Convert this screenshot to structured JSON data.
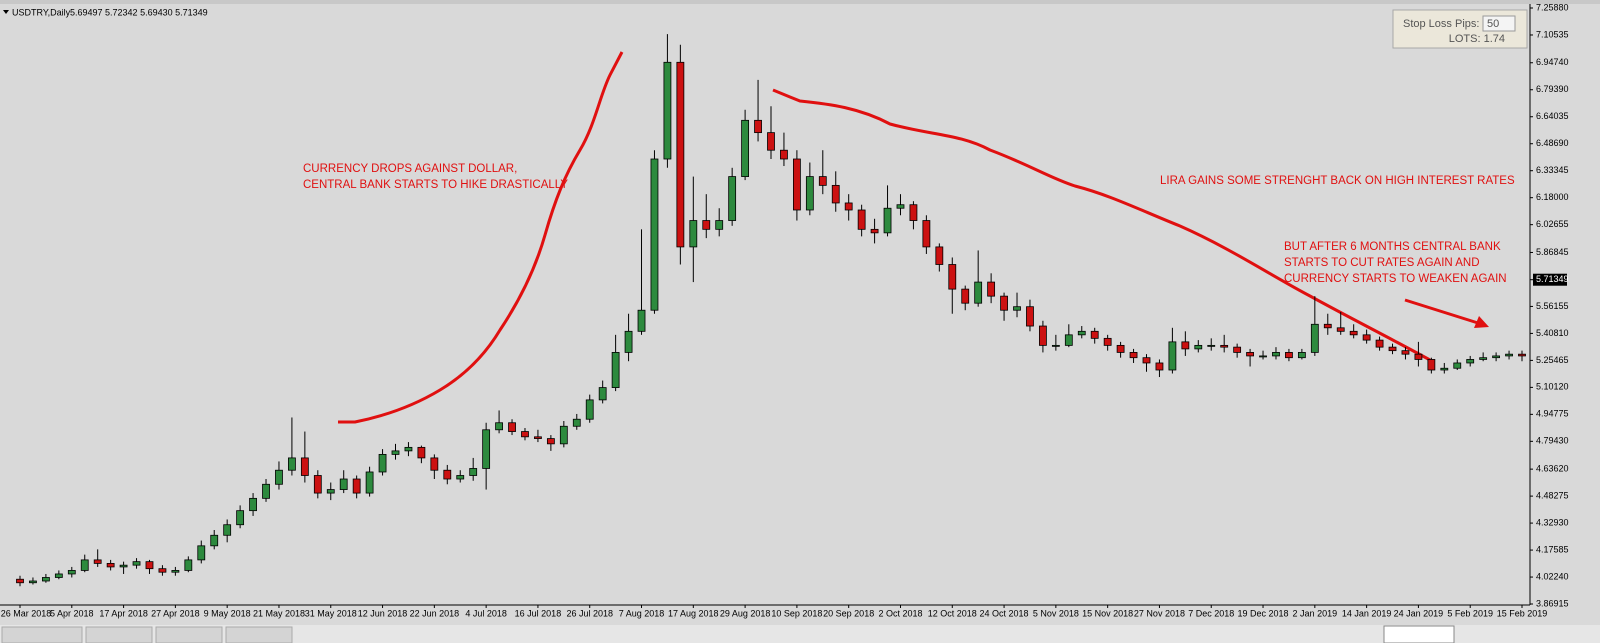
{
  "chart_data": {
    "type": "candlestick",
    "header": {
      "symbol": "USDTRY,Daily",
      "quote": "5.69497 5.72342 5.69430 5.71349"
    },
    "panel": {
      "label": "Stop Loss Pips:",
      "pips": 50,
      "lots": "LOTS: 1.74"
    },
    "annotations": [
      "CURRENCY DROPS AGAINST DOLLAR,",
      "CENTRAL BANK STARTS TO HIKE DRASTICALLY",
      "LIRA GAINS SOME STRENGHT BACK ON HIGH INTEREST RATES",
      "BUT AFTER 6 MONTHS CENTRAL BANK",
      "STARTS TO CUT RATES AGAIN AND",
      "CURRENCY STARTS TO WEAKEN AGAIN"
    ],
    "up_color": "#2d8a3e",
    "down_color": "#cc1111",
    "current_price": 5.71349,
    "ylim": [
      3.86915,
      7.2588
    ],
    "yticks": [
      {
        "value": 7.2588,
        "label": "7.25880"
      },
      7.10535,
      {
        "value": 6.9474,
        "label": "6.94740"
      },
      {
        "value": 6.7939,
        "label": "6.79390"
      },
      6.64035,
      {
        "value": 6.4869,
        "label": "6.48690"
      },
      6.33345,
      {
        "value": 6.18,
        "label": "6.18000"
      },
      6.02655,
      5.86845,
      5.56155,
      {
        "value": 5.4081,
        "label": "5.40810"
      },
      5.25465,
      {
        "value": 5.1012,
        "label": "5.10120"
      },
      4.94775,
      {
        "value": 4.7943,
        "label": "4.79430"
      },
      {
        "value": 4.6362,
        "label": "4.63620"
      },
      4.48275,
      {
        "value": 4.3293,
        "label": "4.32930"
      },
      4.17585,
      {
        "value": 4.0224,
        "label": "4.02240"
      },
      3.86915
    ],
    "categories": [
      "26 Mar 2018",
      null,
      null,
      null,
      "5 Apr 2018",
      null,
      null,
      null,
      "17 Apr 2018",
      null,
      null,
      null,
      "27 Apr 2018",
      null,
      null,
      null,
      "9 May 2018",
      null,
      null,
      null,
      "21 May 2018",
      null,
      null,
      null,
      "31 May 2018",
      null,
      null,
      null,
      "12 Jun 2018",
      null,
      null,
      null,
      "22 Jun 2018",
      null,
      null,
      null,
      "4 Jul 2018",
      null,
      null,
      null,
      "16 Jul 2018",
      null,
      null,
      null,
      "26 Jul 2018",
      null,
      null,
      null,
      "7 Aug 2018",
      null,
      null,
      null,
      "17 Aug 2018",
      null,
      null,
      null,
      "29 Aug 2018",
      null,
      null,
      null,
      "10 Sep 2018",
      null,
      null,
      null,
      "20 Sep 2018",
      null,
      null,
      null,
      "2 Oct 2018",
      null,
      null,
      null,
      "12 Oct 2018",
      null,
      null,
      null,
      "24 Oct 2018",
      null,
      null,
      null,
      "5 Nov 2018",
      null,
      null,
      null,
      "15 Nov 2018",
      null,
      null,
      null,
      "27 Nov 2018",
      null,
      null,
      null,
      "7 Dec 2018",
      null,
      null,
      null,
      "19 Dec 2018",
      null,
      null,
      null,
      "2 Jan 2019",
      null,
      null,
      null,
      "14 Jan 2019",
      null,
      null,
      null,
      "24 Jan 2019",
      null,
      null,
      null,
      "5 Feb 2019",
      null,
      null,
      null,
      "15 Feb 2019"
    ],
    "ohlc": [
      [
        4.01,
        4.03,
        3.97,
        3.99
      ],
      [
        3.99,
        4.02,
        3.98,
        4.0
      ],
      [
        4.0,
        4.04,
        3.99,
        4.02
      ],
      [
        4.02,
        4.06,
        4.01,
        4.04
      ],
      [
        4.04,
        4.08,
        4.02,
        4.06
      ],
      [
        4.06,
        4.15,
        4.05,
        4.12
      ],
      [
        4.12,
        4.18,
        4.08,
        4.1
      ],
      [
        4.1,
        4.12,
        4.06,
        4.08
      ],
      [
        4.08,
        4.11,
        4.04,
        4.09
      ],
      [
        4.09,
        4.13,
        4.07,
        4.11
      ],
      [
        4.11,
        4.12,
        4.04,
        4.07
      ],
      [
        4.07,
        4.09,
        4.03,
        4.05
      ],
      [
        4.05,
        4.08,
        4.03,
        4.06
      ],
      [
        4.06,
        4.14,
        4.05,
        4.12
      ],
      [
        4.12,
        4.23,
        4.1,
        4.2
      ],
      [
        4.2,
        4.29,
        4.18,
        4.26
      ],
      [
        4.26,
        4.35,
        4.22,
        4.32
      ],
      [
        4.32,
        4.43,
        4.3,
        4.4
      ],
      [
        4.4,
        4.5,
        4.37,
        4.47
      ],
      [
        4.47,
        4.58,
        4.45,
        4.55
      ],
      [
        4.55,
        4.68,
        4.52,
        4.63
      ],
      [
        4.63,
        4.93,
        4.6,
        4.7
      ],
      [
        4.7,
        4.85,
        4.56,
        4.6
      ],
      [
        4.6,
        4.63,
        4.47,
        4.5
      ],
      [
        4.5,
        4.56,
        4.46,
        4.52
      ],
      [
        4.52,
        4.63,
        4.5,
        4.58
      ],
      [
        4.58,
        4.6,
        4.47,
        4.5
      ],
      [
        4.5,
        4.65,
        4.48,
        4.62
      ],
      [
        4.62,
        4.75,
        4.6,
        4.72
      ],
      [
        4.72,
        4.78,
        4.69,
        4.74
      ],
      [
        4.74,
        4.79,
        4.71,
        4.76
      ],
      [
        4.76,
        4.77,
        4.67,
        4.7
      ],
      [
        4.7,
        4.72,
        4.58,
        4.63
      ],
      [
        4.63,
        4.66,
        4.55,
        4.58
      ],
      [
        4.58,
        4.63,
        4.56,
        4.6
      ],
      [
        4.6,
        4.7,
        4.57,
        4.64
      ],
      [
        4.64,
        4.9,
        4.52,
        4.86
      ],
      [
        4.86,
        4.97,
        4.84,
        4.9
      ],
      [
        4.9,
        4.92,
        4.83,
        4.85
      ],
      [
        4.85,
        4.87,
        4.8,
        4.82
      ],
      [
        4.82,
        4.86,
        4.79,
        4.81
      ],
      [
        4.81,
        4.83,
        4.74,
        4.78
      ],
      [
        4.78,
        4.91,
        4.76,
        4.88
      ],
      [
        4.88,
        4.95,
        4.86,
        4.92
      ],
      [
        4.92,
        5.06,
        4.9,
        5.03
      ],
      [
        5.03,
        5.14,
        5.01,
        5.1
      ],
      [
        5.1,
        5.4,
        5.08,
        5.3
      ],
      [
        5.3,
        5.52,
        5.25,
        5.42
      ],
      [
        5.42,
        6.0,
        5.4,
        5.54
      ],
      [
        5.54,
        6.45,
        5.52,
        6.4
      ],
      [
        6.4,
        7.11,
        6.35,
        6.95
      ],
      [
        6.95,
        7.05,
        5.8,
        5.9
      ],
      [
        5.9,
        6.3,
        5.7,
        6.05
      ],
      [
        6.05,
        6.2,
        5.95,
        6.0
      ],
      [
        6.0,
        6.12,
        5.96,
        6.05
      ],
      [
        6.05,
        6.35,
        6.02,
        6.3
      ],
      [
        6.3,
        6.68,
        6.28,
        6.62
      ],
      [
        6.62,
        6.85,
        6.5,
        6.55
      ],
      [
        6.55,
        6.7,
        6.4,
        6.45
      ],
      [
        6.45,
        6.55,
        6.36,
        6.4
      ],
      [
        6.4,
        6.45,
        6.05,
        6.11
      ],
      [
        6.11,
        6.38,
        6.08,
        6.3
      ],
      [
        6.3,
        6.45,
        6.2,
        6.25
      ],
      [
        6.25,
        6.33,
        6.1,
        6.15
      ],
      [
        6.15,
        6.2,
        6.05,
        6.11
      ],
      [
        6.11,
        6.14,
        5.96,
        6.0
      ],
      [
        6.0,
        6.06,
        5.92,
        5.98
      ],
      [
        5.98,
        6.25,
        5.96,
        6.12
      ],
      [
        6.12,
        6.2,
        6.08,
        6.14
      ],
      [
        6.14,
        6.16,
        6.0,
        6.05
      ],
      [
        6.05,
        6.08,
        5.86,
        5.9
      ],
      [
        5.9,
        5.92,
        5.76,
        5.8
      ],
      [
        5.8,
        5.84,
        5.52,
        5.66
      ],
      [
        5.66,
        5.68,
        5.54,
        5.58
      ],
      [
        5.58,
        5.88,
        5.56,
        5.7
      ],
      [
        5.7,
        5.75,
        5.58,
        5.62
      ],
      [
        5.62,
        5.64,
        5.48,
        5.54
      ],
      [
        5.54,
        5.64,
        5.5,
        5.56
      ],
      [
        5.56,
        5.6,
        5.42,
        5.45
      ],
      [
        5.45,
        5.48,
        5.3,
        5.34
      ],
      [
        5.34,
        5.4,
        5.31,
        5.34
      ],
      [
        5.34,
        5.46,
        5.33,
        5.4
      ],
      [
        5.4,
        5.45,
        5.38,
        5.42
      ],
      [
        5.42,
        5.44,
        5.35,
        5.38
      ],
      [
        5.38,
        5.4,
        5.31,
        5.34
      ],
      [
        5.34,
        5.36,
        5.27,
        5.3
      ],
      [
        5.3,
        5.32,
        5.24,
        5.27
      ],
      [
        5.27,
        5.29,
        5.19,
        5.24
      ],
      [
        5.24,
        5.26,
        5.16,
        5.2
      ],
      [
        5.2,
        5.44,
        5.18,
        5.36
      ],
      [
        5.36,
        5.42,
        5.28,
        5.32
      ],
      [
        5.32,
        5.37,
        5.3,
        5.34
      ],
      [
        5.34,
        5.38,
        5.31,
        5.34
      ],
      [
        5.34,
        5.4,
        5.3,
        5.33
      ],
      [
        5.33,
        5.35,
        5.27,
        5.3
      ],
      [
        5.3,
        5.32,
        5.22,
        5.28
      ],
      [
        5.28,
        5.31,
        5.26,
        5.28
      ],
      [
        5.28,
        5.33,
        5.26,
        5.3
      ],
      [
        5.3,
        5.32,
        5.25,
        5.27
      ],
      [
        5.27,
        5.32,
        5.26,
        5.3
      ],
      [
        5.3,
        5.62,
        5.28,
        5.46
      ],
      [
        5.46,
        5.52,
        5.4,
        5.44
      ],
      [
        5.44,
        5.53,
        5.4,
        5.42
      ],
      [
        5.42,
        5.46,
        5.38,
        5.4
      ],
      [
        5.4,
        5.43,
        5.35,
        5.37
      ],
      [
        5.37,
        5.39,
        5.31,
        5.33
      ],
      [
        5.33,
        5.35,
        5.29,
        5.31
      ],
      [
        5.31,
        5.33,
        5.26,
        5.29
      ],
      [
        5.29,
        5.36,
        5.22,
        5.26
      ],
      [
        5.26,
        5.27,
        5.18,
        5.2
      ],
      [
        5.2,
        5.24,
        5.18,
        5.21
      ],
      [
        5.21,
        5.26,
        5.2,
        5.24
      ],
      [
        5.24,
        5.28,
        5.22,
        5.26
      ],
      [
        5.26,
        5.3,
        5.25,
        5.27
      ],
      [
        5.27,
        5.3,
        5.25,
        5.28
      ],
      [
        5.28,
        5.31,
        5.26,
        5.29
      ],
      [
        5.29,
        5.31,
        5.25,
        5.28
      ]
    ]
  }
}
